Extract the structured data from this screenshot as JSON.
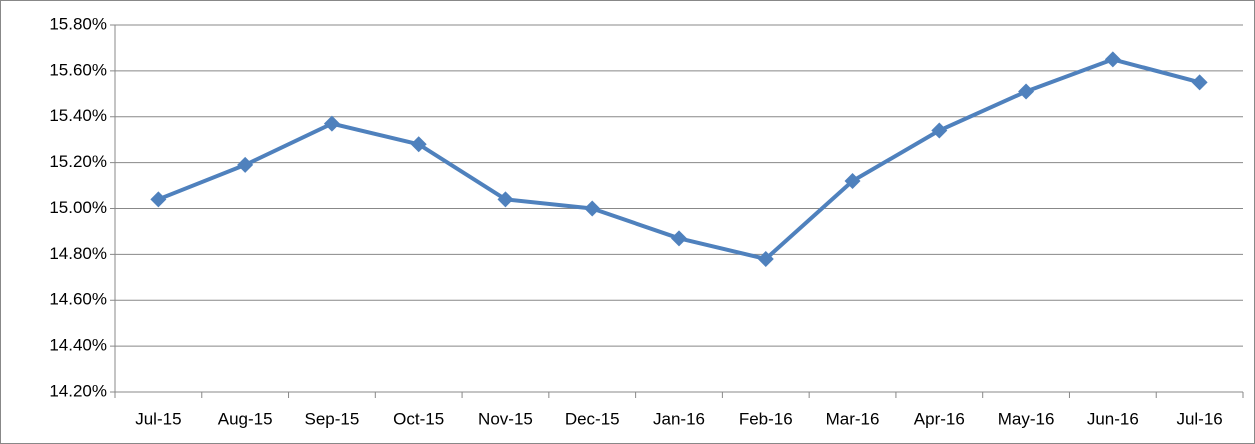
{
  "chart_data": {
    "type": "line",
    "categories": [
      "Jul-15",
      "Aug-15",
      "Sep-15",
      "Oct-15",
      "Nov-15",
      "Dec-15",
      "Jan-16",
      "Feb-16",
      "Mar-16",
      "Apr-16",
      "May-16",
      "Jun-16",
      "Jul-16"
    ],
    "series": [
      {
        "color": "#4f81bd",
        "values": [
          15.04,
          15.19,
          15.37,
          15.28,
          15.04,
          15.0,
          14.87,
          14.78,
          15.12,
          15.34,
          15.51,
          15.65,
          15.55
        ]
      }
    ],
    "ylim": [
      14.2,
      15.8
    ],
    "yticks": [
      {
        "value": 14.2,
        "label": "14.20%"
      },
      {
        "value": 14.4,
        "label": "14.40%"
      },
      {
        "value": 14.6,
        "label": "14.60%"
      },
      {
        "value": 14.8,
        "label": "14.80%"
      },
      {
        "value": 15.0,
        "label": "15.00%"
      },
      {
        "value": 15.2,
        "label": "15.20%"
      },
      {
        "value": 15.4,
        "label": "15.40%"
      },
      {
        "value": 15.6,
        "label": "15.60%"
      },
      {
        "value": 15.8,
        "label": "15.80%"
      }
    ],
    "grid": true
  }
}
